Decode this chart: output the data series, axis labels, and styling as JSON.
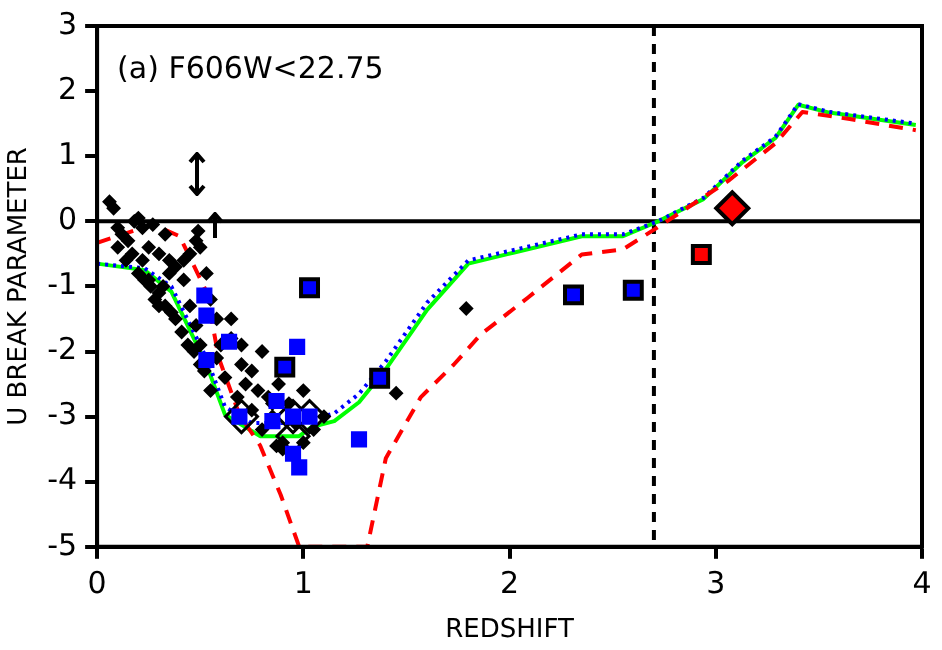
{
  "chart_data": {
    "type": "scatter",
    "xlabel": "REDSHIFT",
    "ylabel": "U BREAK PARAMETER",
    "xlim": [
      0,
      4
    ],
    "ylim": [
      -5,
      3
    ],
    "xticks": [
      0,
      1,
      2,
      3,
      4
    ],
    "yticks": [
      -5,
      -4,
      -3,
      -2,
      -1,
      0,
      1,
      2,
      3
    ],
    "annotations": [
      "(a) F606W<22.75"
    ],
    "ref_lines": [
      {
        "axis": "y",
        "value": 0,
        "color": "#000000",
        "line_style": "solid"
      },
      {
        "axis": "x",
        "value": 2.7,
        "color": "#000000",
        "line_style": "dashed"
      }
    ],
    "series": [
      {
        "type": "line",
        "color": "#ff0000",
        "line_style": "dashed",
        "x": [
          0,
          0.27,
          0.4,
          0.53,
          0.59,
          0.69,
          0.79,
          0.89,
          0.98,
          1.31,
          1.4,
          1.57,
          1.73,
          1.86,
          2.09,
          2.35,
          2.55,
          2.72,
          3.06,
          3.29,
          3.42,
          3.65,
          3.97
        ],
        "values": [
          -0.33,
          -0.05,
          -0.23,
          -1.08,
          -2.1,
          -2.97,
          -3.44,
          -4.2,
          -5,
          -5,
          -3.64,
          -2.7,
          -2.2,
          -1.74,
          -1.17,
          -0.51,
          -0.43,
          -0.09,
          0.62,
          1.2,
          1.68,
          1.57,
          1.4
        ]
      },
      {
        "type": "line",
        "color": "#0000ff",
        "line_style": "dotted",
        "x": [
          0,
          0.23,
          0.36,
          0.53,
          0.62,
          0.75,
          0.9,
          1.04,
          1.15,
          1.27,
          1.4,
          1.6,
          1.8,
          2.35,
          2.55,
          2.72,
          2.94,
          3.13,
          3.29,
          3.4,
          3.55,
          3.97
        ],
        "values": [
          -0.65,
          -0.72,
          -1.0,
          -2.1,
          -2.85,
          -3.1,
          -3.1,
          -3.05,
          -2.95,
          -2.65,
          -2.15,
          -1.25,
          -0.6,
          -0.2,
          -0.2,
          0,
          0.36,
          0.93,
          1.3,
          1.8,
          1.68,
          1.5
        ]
      },
      {
        "type": "line",
        "color": "#00ff00",
        "line_style": "solid",
        "x": [
          0,
          0.23,
          0.36,
          0.53,
          0.62,
          0.79,
          0.98,
          1.04,
          1.15,
          1.27,
          1.4,
          1.6,
          1.8,
          2.35,
          2.55,
          2.72,
          2.94,
          3.13,
          3.29,
          3.4,
          3.55,
          3.97
        ],
        "values": [
          -0.65,
          -0.75,
          -1.08,
          -2.2,
          -2.97,
          -3.3,
          -3.3,
          -3.16,
          -3.07,
          -2.78,
          -2.27,
          -1.36,
          -0.65,
          -0.23,
          -0.23,
          0,
          0.34,
          0.91,
          1.28,
          1.79,
          1.67,
          1.48
        ]
      },
      {
        "color": "#000000",
        "marker": "diamond",
        "x": [
          0.06,
          0.08,
          0.1,
          0.12,
          0.15,
          0.18,
          0.2,
          0.22,
          0.25,
          0.27,
          0.3,
          0.33,
          0.35,
          0.1,
          0.14,
          0.17,
          0.2,
          0.23,
          0.26,
          0.3,
          0.33,
          0.36,
          0.38,
          0.41,
          0.44,
          0.47,
          0.5,
          0.22,
          0.25,
          0.28,
          0.32,
          0.35,
          0.38,
          0.42,
          0.45,
          0.48,
          0.5,
          0.53,
          0.55,
          0.58,
          0.6,
          0.45,
          0.48,
          0.5,
          0.52,
          0.55,
          0.58,
          0.62,
          0.65,
          0.68,
          0.7,
          0.72,
          0.75,
          0.78,
          0.8,
          0.83,
          0.85,
          0.88,
          0.9,
          0.93,
          0.96,
          1.0,
          1.05,
          1.1,
          0.65,
          0.7,
          0.75,
          0.8,
          0.85,
          0.9,
          0.87,
          1.0,
          0.3,
          0.42,
          0.49,
          1.45,
          1.79
        ],
        "values": [
          0.3,
          0.2,
          -0.1,
          -0.2,
          -0.3,
          0,
          0.05,
          -0.1,
          -0.4,
          -0.05,
          -0.5,
          -0.2,
          -0.6,
          -0.4,
          -0.6,
          -0.5,
          -0.8,
          -0.9,
          -1.0,
          -1.1,
          -1.3,
          -1.4,
          -1.5,
          -1.7,
          -1.9,
          -2.0,
          -2.2,
          -0.6,
          -0.9,
          -1.2,
          -1.0,
          -0.8,
          -0.7,
          -0.6,
          -0.5,
          -0.3,
          -0.4,
          -0.8,
          -1.2,
          -1.5,
          -1.9,
          -1.3,
          -1.6,
          -1.9,
          -2.3,
          -2.6,
          -2.1,
          -2.4,
          -1.8,
          -2.7,
          -2.2,
          -2.5,
          -2.9,
          -2.6,
          -3.2,
          -2.7,
          -3.0,
          -2.5,
          -3.4,
          -2.8,
          -3.1,
          -2.6,
          -3.2,
          -3.0,
          -1.5,
          -1.9,
          -2.3,
          -2.0,
          -2.8,
          -3.5,
          -3.45,
          -3.4,
          -1.3,
          -0.9,
          -0.15,
          -2.64,
          -1.34
        ]
      },
      {
        "color": "#000000",
        "marker": "diamond_open",
        "x": [
          0.7,
          0.95,
          1.03,
          0.95
        ],
        "values": [
          -3.0,
          -3.0,
          -3.0,
          -3.3
        ]
      },
      {
        "color": "#0000ff",
        "marker": "square",
        "x": [
          0.52,
          0.53,
          0.53,
          0.64,
          0.69,
          0.85,
          0.87,
          0.97,
          0.95,
          0.95,
          0.98,
          1.03,
          1.27
        ],
        "values": [
          -1.14,
          -1.45,
          -2.13,
          -1.85,
          -3.0,
          -3.07,
          -2.76,
          -1.93,
          -3.0,
          -3.57,
          -3.78,
          -3.0,
          -3.35
        ]
      },
      {
        "color": "#0000ff",
        "marker": "square_framed",
        "x": [
          1.03,
          0.91,
          1.37,
          2.31,
          2.6
        ],
        "values": [
          -1.02,
          -2.24,
          -2.41,
          -1.13,
          -1.06
        ]
      },
      {
        "color": "#ff0000",
        "marker": "square_framed",
        "x": [
          2.93
        ],
        "values": [
          -0.51
        ]
      },
      {
        "color": "#ff0000",
        "marker": "diamond_framed",
        "x": [
          3.08
        ],
        "values": [
          0.2
        ]
      }
    ]
  }
}
